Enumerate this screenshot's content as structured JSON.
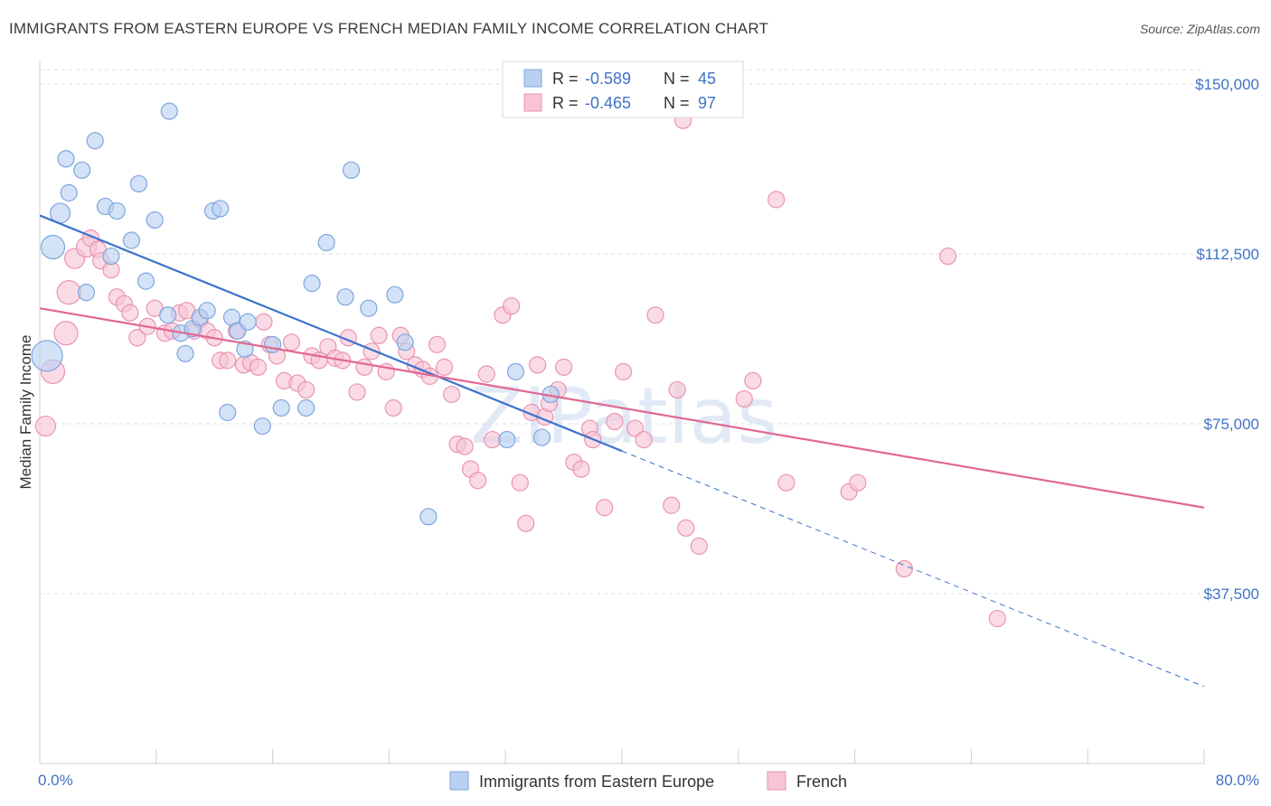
{
  "header": {
    "title": "IMMIGRANTS FROM EASTERN EUROPE VS FRENCH MEDIAN FAMILY INCOME CORRELATION CHART",
    "source": "Source: ZipAtlas.com"
  },
  "watermark": "ZIPatlas",
  "colors": {
    "blue_fill": "#b8d0f2",
    "blue_stroke": "#7ea6de",
    "blue_line": "#3a72cc",
    "pink_fill": "#f7c5d5",
    "pink_stroke": "#e994b1",
    "pink_line": "#e06891",
    "tick_text": "#3f72c6",
    "grid": "#dedede"
  },
  "chart_data": {
    "type": "scatter",
    "title": "IMMIGRANTS FROM EASTERN EUROPE VS FRENCH MEDIAN FAMILY INCOME CORRELATION CHART",
    "xlabel": "",
    "ylabel": "Median Family Income",
    "xlim": [
      0,
      80
    ],
    "ylim": [
      0,
      155000
    ],
    "x_tick_labels": [
      "0.0%",
      "80.0%"
    ],
    "y_ticks": [
      37500,
      75000,
      112500,
      150000
    ],
    "y_tick_labels": [
      "$37,500",
      "$75,000",
      "$112,500",
      "$150,000"
    ],
    "grid": true,
    "legend_top": [
      {
        "series": "Immigrants from Eastern Europe",
        "r_label": "R =",
        "r_value": "-0.589",
        "n_label": "N =",
        "n_value": "45"
      },
      {
        "series": "French",
        "r_label": "R =",
        "r_value": "-0.465",
        "n_label": "N =",
        "n_value": "97"
      }
    ],
    "legend_bottom": [
      "Immigrants from Eastern Europe",
      "French"
    ],
    "series": [
      {
        "name": "Immigrants from Eastern Europe",
        "color": "blue",
        "trend": {
          "x0": 0,
          "y0": 121000,
          "x1": 40,
          "y1": 69000,
          "dash_to_x": 80,
          "dash_to_y": 17000
        },
        "points": [
          [
            0.5,
            90000,
            17
          ],
          [
            0.9,
            114000,
            13
          ],
          [
            1.4,
            121500,
            11
          ],
          [
            1.8,
            133500,
            9
          ],
          [
            2.0,
            126000,
            9
          ],
          [
            2.9,
            131000,
            9
          ],
          [
            3.2,
            104000,
            9
          ],
          [
            3.8,
            137500,
            9
          ],
          [
            4.9,
            112000,
            9
          ],
          [
            4.5,
            123000,
            9
          ],
          [
            5.3,
            122000,
            9
          ],
          [
            6.3,
            115500,
            9
          ],
          [
            6.8,
            128000,
            9
          ],
          [
            7.3,
            106500,
            9
          ],
          [
            7.9,
            120000,
            9
          ],
          [
            8.8,
            99000,
            9
          ],
          [
            8.9,
            144000,
            9
          ],
          [
            9.7,
            95000,
            9
          ],
          [
            10.0,
            90500,
            9
          ],
          [
            10.5,
            96000,
            9
          ],
          [
            11.0,
            98500,
            9
          ],
          [
            11.5,
            100000,
            9
          ],
          [
            11.9,
            122000,
            9
          ],
          [
            12.4,
            122500,
            9
          ],
          [
            12.9,
            77500,
            9
          ],
          [
            13.2,
            98500,
            9
          ],
          [
            13.6,
            95500,
            9
          ],
          [
            14.1,
            91500,
            9
          ],
          [
            14.3,
            97500,
            9
          ],
          [
            15.3,
            74500,
            9
          ],
          [
            16.0,
            92500,
            9
          ],
          [
            16.6,
            78500,
            9
          ],
          [
            18.3,
            78500,
            9
          ],
          [
            18.7,
            106000,
            9
          ],
          [
            19.7,
            115000,
            9
          ],
          [
            21.0,
            103000,
            9
          ],
          [
            21.4,
            131000,
            9
          ],
          [
            22.6,
            100500,
            9
          ],
          [
            24.4,
            103500,
            9
          ],
          [
            25.1,
            93000,
            9
          ],
          [
            26.7,
            54500,
            9
          ],
          [
            32.1,
            71500,
            9
          ],
          [
            32.7,
            86500,
            9
          ],
          [
            35.1,
            81500,
            9
          ],
          [
            34.5,
            72000,
            9
          ]
        ]
      },
      {
        "name": "French",
        "color": "pink",
        "trend": {
          "x0": 0,
          "y0": 100500,
          "x1": 80,
          "y1": 56500
        },
        "points": [
          [
            0.4,
            74500,
            11
          ],
          [
            0.9,
            86500,
            13
          ],
          [
            1.8,
            95000,
            13
          ],
          [
            2.0,
            104000,
            13
          ],
          [
            2.4,
            111500,
            11
          ],
          [
            3.2,
            114000,
            11
          ],
          [
            3.5,
            116000,
            9
          ],
          [
            4.0,
            113500,
            9
          ],
          [
            4.2,
            111000,
            9
          ],
          [
            4.9,
            109000,
            9
          ],
          [
            5.3,
            103000,
            9
          ],
          [
            5.8,
            101500,
            9
          ],
          [
            6.2,
            99500,
            9
          ],
          [
            6.7,
            94000,
            9
          ],
          [
            7.4,
            96500,
            9
          ],
          [
            7.9,
            100500,
            9
          ],
          [
            8.6,
            95000,
            9
          ],
          [
            9.1,
            95500,
            9
          ],
          [
            9.6,
            99500,
            9
          ],
          [
            10.1,
            100000,
            9
          ],
          [
            10.6,
            95500,
            9
          ],
          [
            11.0,
            98000,
            9
          ],
          [
            11.5,
            95500,
            9
          ],
          [
            12.0,
            94000,
            9
          ],
          [
            12.4,
            89000,
            9
          ],
          [
            12.9,
            89000,
            9
          ],
          [
            13.5,
            95500,
            9
          ],
          [
            14.0,
            88000,
            9
          ],
          [
            14.5,
            88500,
            9
          ],
          [
            15.0,
            87500,
            9
          ],
          [
            15.4,
            97500,
            9
          ],
          [
            15.8,
            92500,
            9
          ],
          [
            16.3,
            90000,
            9
          ],
          [
            16.8,
            84500,
            9
          ],
          [
            17.3,
            93000,
            9
          ],
          [
            17.7,
            84000,
            9
          ],
          [
            18.3,
            82500,
            9
          ],
          [
            18.7,
            90000,
            9
          ],
          [
            19.2,
            89000,
            9
          ],
          [
            19.8,
            92000,
            9
          ],
          [
            20.3,
            89500,
            9
          ],
          [
            20.8,
            89000,
            9
          ],
          [
            21.2,
            94000,
            9
          ],
          [
            21.8,
            82000,
            9
          ],
          [
            22.3,
            87500,
            9
          ],
          [
            22.8,
            91000,
            9
          ],
          [
            23.3,
            94500,
            9
          ],
          [
            23.8,
            86500,
            9
          ],
          [
            24.3,
            78500,
            9
          ],
          [
            24.8,
            94500,
            9
          ],
          [
            25.2,
            91000,
            9
          ],
          [
            25.8,
            88000,
            9
          ],
          [
            26.3,
            87000,
            9
          ],
          [
            26.8,
            85500,
            9
          ],
          [
            27.3,
            92500,
            9
          ],
          [
            27.8,
            87500,
            9
          ],
          [
            28.3,
            81500,
            9
          ],
          [
            28.7,
            70500,
            9
          ],
          [
            29.2,
            70000,
            9
          ],
          [
            29.6,
            65000,
            9
          ],
          [
            30.1,
            62500,
            9
          ],
          [
            30.7,
            86000,
            9
          ],
          [
            31.1,
            71500,
            9
          ],
          [
            31.8,
            99000,
            9
          ],
          [
            32.4,
            101000,
            9
          ],
          [
            33.0,
            62000,
            9
          ],
          [
            33.4,
            53000,
            9
          ],
          [
            33.8,
            77500,
            9
          ],
          [
            34.2,
            88000,
            9
          ],
          [
            34.7,
            76500,
            9
          ],
          [
            35.0,
            79500,
            9
          ],
          [
            35.6,
            82500,
            9
          ],
          [
            36.0,
            87500,
            9
          ],
          [
            36.7,
            66500,
            9
          ],
          [
            37.2,
            65000,
            9
          ],
          [
            37.8,
            74000,
            9
          ],
          [
            38.0,
            71500,
            9
          ],
          [
            38.8,
            56500,
            9
          ],
          [
            39.5,
            75500,
            9
          ],
          [
            40.1,
            86500,
            9
          ],
          [
            40.9,
            74000,
            9
          ],
          [
            41.5,
            71500,
            9
          ],
          [
            42.3,
            99000,
            9
          ],
          [
            43.4,
            57000,
            9
          ],
          [
            43.8,
            82500,
            9
          ],
          [
            44.4,
            52000,
            9
          ],
          [
            45.3,
            48000,
            9
          ],
          [
            48.4,
            80500,
            9
          ],
          [
            49.0,
            84500,
            9
          ],
          [
            50.6,
            124500,
            9
          ],
          [
            51.3,
            62000,
            9
          ],
          [
            55.6,
            60000,
            9
          ],
          [
            56.2,
            62000,
            9
          ],
          [
            59.4,
            43000,
            9
          ],
          [
            62.4,
            112000,
            9
          ],
          [
            65.8,
            32000,
            9
          ],
          [
            44.2,
            142000,
            9
          ]
        ]
      }
    ]
  }
}
